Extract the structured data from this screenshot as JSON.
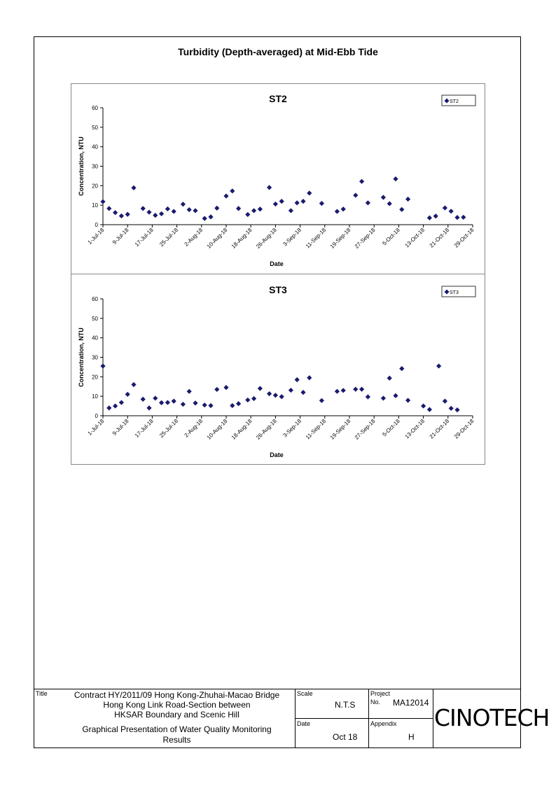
{
  "page": {
    "title": "Turbidity (Depth-averaged) at Mid-Ebb Tide"
  },
  "chart_data": [
    {
      "type": "scatter",
      "title": "ST2",
      "xlabel": "Date",
      "ylabel": "Concentration, NTU",
      "ylim": [
        0,
        60
      ],
      "yticks": [
        0,
        10,
        20,
        30,
        40,
        50,
        60
      ],
      "xlim": [
        "2018-07-01",
        "2018-10-29"
      ],
      "xticks": [
        "1-Jul-18",
        "9-Jul-18",
        "17-Jul-18",
        "25-Jul-18",
        "2-Aug-18",
        "10-Aug-18",
        "18-Aug-18",
        "26-Aug-18",
        "3-Sep-18",
        "11-Sep-18",
        "19-Sep-18",
        "27-Sep-18",
        "5-Oct-18",
        "13-Oct-18",
        "21-Oct-18",
        "29-Oct-18"
      ],
      "grid": false,
      "legend": "top-right",
      "marker_color": "#1a1a6e",
      "series": [
        {
          "name": "ST2",
          "points": [
            [
              "2018-07-01",
              11.8
            ],
            [
              "2018-07-03",
              8.3
            ],
            [
              "2018-07-05",
              6.2
            ],
            [
              "2018-07-07",
              4.5
            ],
            [
              "2018-07-09",
              5.3
            ],
            [
              "2018-07-11",
              18.9
            ],
            [
              "2018-07-14",
              8.3
            ],
            [
              "2018-07-16",
              6.4
            ],
            [
              "2018-07-18",
              4.8
            ],
            [
              "2018-07-20",
              5.6
            ],
            [
              "2018-07-22",
              8.1
            ],
            [
              "2018-07-24",
              6.8
            ],
            [
              "2018-07-27",
              10.5
            ],
            [
              "2018-07-29",
              7.7
            ],
            [
              "2018-07-31",
              7.2
            ],
            [
              "2018-08-03",
              3.2
            ],
            [
              "2018-08-05",
              4.0
            ],
            [
              "2018-08-07",
              8.5
            ],
            [
              "2018-08-10",
              14.7
            ],
            [
              "2018-08-12",
              17.3
            ],
            [
              "2018-08-14",
              8.3
            ],
            [
              "2018-08-17",
              5.2
            ],
            [
              "2018-08-19",
              7.2
            ],
            [
              "2018-08-21",
              8.0
            ],
            [
              "2018-08-24",
              19.1
            ],
            [
              "2018-08-26",
              10.6
            ],
            [
              "2018-08-28",
              12.0
            ],
            [
              "2018-08-31",
              7.2
            ],
            [
              "2018-09-02",
              11.2
            ],
            [
              "2018-09-04",
              12.0
            ],
            [
              "2018-09-06",
              16.2
            ],
            [
              "2018-09-10",
              10.9
            ],
            [
              "2018-09-15",
              6.8
            ],
            [
              "2018-09-17",
              8.0
            ],
            [
              "2018-09-21",
              15.1
            ],
            [
              "2018-09-23",
              22.2
            ],
            [
              "2018-09-25",
              11.2
            ],
            [
              "2018-09-30",
              14.0
            ],
            [
              "2018-10-02",
              10.8
            ],
            [
              "2018-10-04",
              23.5
            ],
            [
              "2018-10-06",
              7.8
            ],
            [
              "2018-10-08",
              13.1
            ],
            [
              "2018-10-15",
              3.5
            ],
            [
              "2018-10-17",
              4.4
            ],
            [
              "2018-10-20",
              8.6
            ],
            [
              "2018-10-22",
              6.9
            ],
            [
              "2018-10-24",
              3.7
            ],
            [
              "2018-10-26",
              3.8
            ]
          ]
        }
      ]
    },
    {
      "type": "scatter",
      "title": "ST3",
      "xlabel": "Date",
      "ylabel": "Concentration, NTU",
      "ylim": [
        0,
        60
      ],
      "yticks": [
        0,
        10,
        20,
        30,
        40,
        50,
        60
      ],
      "xlim": [
        "2018-07-01",
        "2018-10-29"
      ],
      "xticks": [
        "1-Jul-18",
        "9-Jul-18",
        "17-Jul-18",
        "25-Jul-18",
        "2-Aug-18",
        "10-Aug-18",
        "18-Aug-18",
        "26-Aug-18",
        "3-Sep-18",
        "11-Sep-18",
        "19-Sep-18",
        "27-Sep-18",
        "5-Oct-18",
        "13-Oct-18",
        "21-Oct-18",
        "29-Oct-18"
      ],
      "grid": false,
      "legend": "top-right",
      "marker_color": "#1a1a6e",
      "series": [
        {
          "name": "ST3",
          "points": [
            [
              "2018-07-01",
              25.5
            ],
            [
              "2018-07-03",
              4.0
            ],
            [
              "2018-07-05",
              5.0
            ],
            [
              "2018-07-07",
              6.8
            ],
            [
              "2018-07-09",
              11.0
            ],
            [
              "2018-07-11",
              16.0
            ],
            [
              "2018-07-14",
              8.5
            ],
            [
              "2018-07-16",
              4.0
            ],
            [
              "2018-07-18",
              9.0
            ],
            [
              "2018-07-20",
              6.7
            ],
            [
              "2018-07-22",
              6.8
            ],
            [
              "2018-07-24",
              7.5
            ],
            [
              "2018-07-27",
              5.9
            ],
            [
              "2018-07-29",
              12.5
            ],
            [
              "2018-07-31",
              6.5
            ],
            [
              "2018-08-03",
              5.5
            ],
            [
              "2018-08-05",
              5.2
            ],
            [
              "2018-08-07",
              13.5
            ],
            [
              "2018-08-10",
              14.5
            ],
            [
              "2018-08-12",
              5.2
            ],
            [
              "2018-08-14",
              6.2
            ],
            [
              "2018-08-17",
              8.1
            ],
            [
              "2018-08-19",
              8.8
            ],
            [
              "2018-08-21",
              14.0
            ],
            [
              "2018-08-24",
              11.3
            ],
            [
              "2018-08-26",
              10.5
            ],
            [
              "2018-08-28",
              9.8
            ],
            [
              "2018-08-31",
              13.1
            ],
            [
              "2018-09-02",
              18.5
            ],
            [
              "2018-09-04",
              12.0
            ],
            [
              "2018-09-06",
              19.5
            ],
            [
              "2018-09-10",
              7.8
            ],
            [
              "2018-09-15",
              12.5
            ],
            [
              "2018-09-17",
              13.0
            ],
            [
              "2018-09-21",
              13.6
            ],
            [
              "2018-09-23",
              13.6
            ],
            [
              "2018-09-25",
              9.7
            ],
            [
              "2018-09-30",
              9.0
            ],
            [
              "2018-10-02",
              19.3
            ],
            [
              "2018-10-04",
              10.3
            ],
            [
              "2018-10-06",
              24.2
            ],
            [
              "2018-10-08",
              7.9
            ],
            [
              "2018-10-13",
              5.0
            ],
            [
              "2018-10-15",
              3.2
            ],
            [
              "2018-10-18",
              25.5
            ],
            [
              "2018-10-20",
              7.5
            ],
            [
              "2018-10-22",
              3.8
            ],
            [
              "2018-10-24",
              3.0
            ]
          ]
        }
      ]
    }
  ],
  "title_block": {
    "title_label": "Title",
    "contract_lines": [
      "Contract HY/2011/09 Hong Kong-Zhuhai-Macao Bridge",
      "Hong Kong Link Road-Section between",
      "HKSAR Boundary and Scenic Hill"
    ],
    "description_lines": [
      "Graphical Presentation of Water Quality Monitoring",
      "Results"
    ],
    "scale_label": "Scale",
    "scale_value": "N.T.S",
    "date_label": "Date",
    "date_value": "Oct 18",
    "project_label": "Project",
    "project_no_label": "No.",
    "project_no": "MA12014",
    "appendix_label": "Appendix",
    "appendix_value": "H",
    "logo_text": "CINOTECH"
  }
}
